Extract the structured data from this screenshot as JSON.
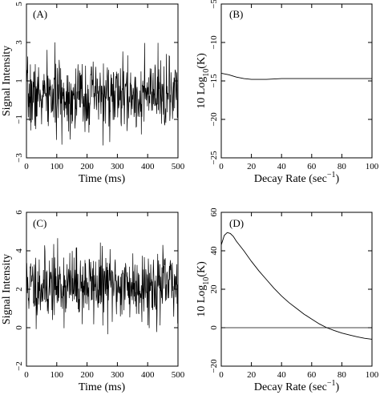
{
  "chart_data": [
    {
      "type": "line",
      "panel_label": "(A)",
      "xlabel": "Time (ms)",
      "ylabel": "Signal Intensity",
      "xlim": [
        0,
        500
      ],
      "ylim": [
        -3,
        5
      ],
      "xticks": [
        0,
        100,
        200,
        300,
        400,
        500
      ],
      "yticks": [
        -3,
        -1,
        1,
        3,
        5
      ],
      "ytick_labels": [
        "−3",
        "−1",
        "1",
        "3",
        "5"
      ],
      "noise": {
        "mean": 0.2,
        "sd": 0.9,
        "n_points": 500,
        "seed": 7
      },
      "grid": false
    },
    {
      "type": "line",
      "panel_label": "(B)",
      "xlabel": "Decay Rate (sec",
      "xlabel_sup": "−1",
      "xlabel_tail": ")",
      "ylabel": "10 Log",
      "ylabel_sub": "10",
      "ylabel_tail": "(K)",
      "xlim": [
        0,
        100
      ],
      "ylim": [
        -25,
        -5
      ],
      "xticks": [
        0,
        20,
        40,
        60,
        80,
        100
      ],
      "yticks": [
        -25,
        -20,
        -15,
        -10,
        -5
      ],
      "ytick_labels": [
        "−25",
        "−20",
        "−15",
        "−10",
        "−5"
      ],
      "x": [
        0,
        5,
        10,
        15,
        20,
        30,
        40,
        50,
        60,
        70,
        80,
        90,
        100
      ],
      "y": [
        -14.0,
        -14.2,
        -14.5,
        -14.7,
        -14.8,
        -14.8,
        -14.7,
        -14.7,
        -14.7,
        -14.7,
        -14.7,
        -14.7,
        -14.7
      ],
      "grid": false
    },
    {
      "type": "line",
      "panel_label": "(C)",
      "xlabel": "Time (ms)",
      "ylabel": "Signal Intensity",
      "xlim": [
        0,
        500
      ],
      "ylim": [
        -2,
        6
      ],
      "xticks": [
        0,
        100,
        200,
        300,
        400,
        500
      ],
      "yticks": [
        -2,
        0,
        2,
        4,
        6
      ],
      "ytick_labels": [
        "−2",
        "0",
        "2",
        "4",
        "6"
      ],
      "noise": {
        "mean": 2.2,
        "sd": 0.9,
        "n_points": 500,
        "seed": 11
      },
      "grid": false
    },
    {
      "type": "line",
      "panel_label": "(D)",
      "xlabel": "Decay Rate (sec",
      "xlabel_sup": "−1",
      "xlabel_tail": ")",
      "ylabel": "10 Log",
      "ylabel_sub": "10",
      "ylabel_tail": "(K)",
      "xlim": [
        0,
        100
      ],
      "ylim": [
        -20,
        60
      ],
      "xticks": [
        0,
        20,
        40,
        60,
        80,
        100
      ],
      "yticks": [
        -20,
        0,
        20,
        40,
        60
      ],
      "ytick_labels": [
        "−20",
        "0",
        "20",
        "40",
        "60"
      ],
      "x": [
        0,
        2,
        4,
        6,
        8,
        10,
        15,
        20,
        25,
        30,
        35,
        40,
        45,
        50,
        55,
        60,
        65,
        70,
        75,
        80,
        85,
        90,
        95,
        100
      ],
      "y": [
        43,
        48,
        49.5,
        49,
        47.5,
        45,
        40,
        34.5,
        29.5,
        25,
        20.5,
        16.5,
        13,
        10,
        7,
        4.5,
        2,
        0,
        -1.5,
        -2.8,
        -3.8,
        -4.7,
        -5.5,
        -6
      ],
      "reference_line": 0,
      "grid": false
    }
  ]
}
